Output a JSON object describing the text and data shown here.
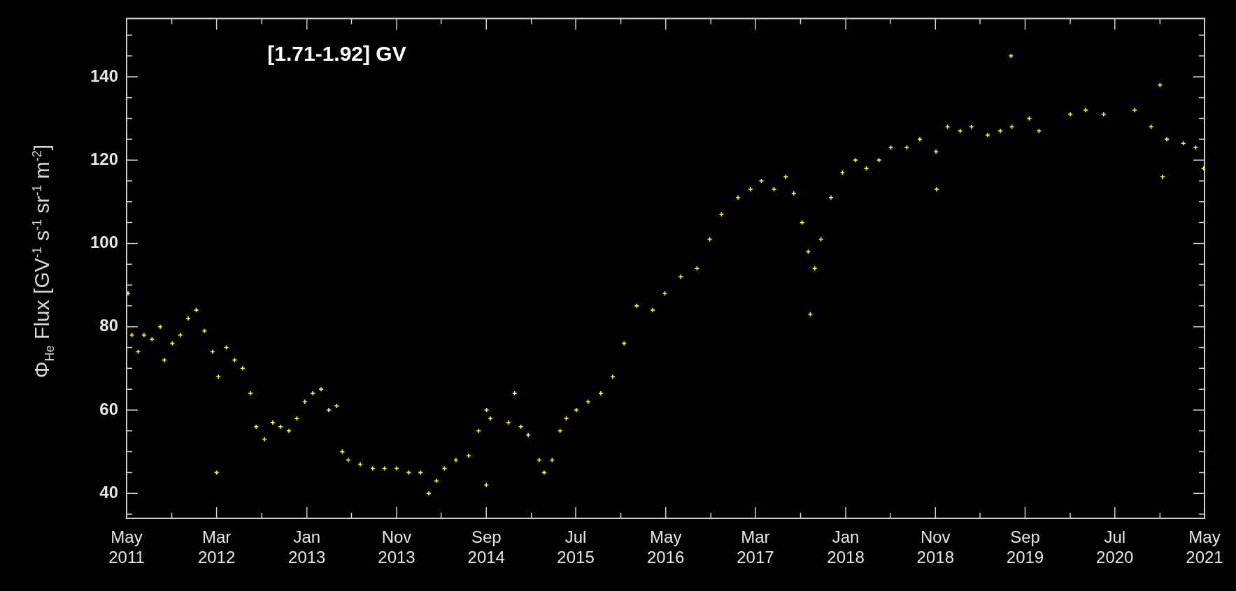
{
  "chart_data": {
    "type": "scatter",
    "title": "[1.71-1.92] GV",
    "ylabel": "Φ$_{He}$ Flux [GV$^{-1}$ s$^{-1}$ sr$^{-1}$ m$^{-2}$]",
    "marker": "cross",
    "grid": false,
    "legend": false,
    "xlim": [
      "2011-05-01",
      "2021-05-01"
    ],
    "xticks": [
      {
        "value": "2011-05",
        "label": "May 2011"
      },
      {
        "value": "2011-10",
        "label": null
      },
      {
        "value": "2012-03",
        "label": "Mar 2012"
      },
      {
        "value": "2012-08",
        "label": null
      },
      {
        "value": "2013-01",
        "label": "Jan 2013"
      },
      {
        "value": "2013-06",
        "label": null
      },
      {
        "value": "2013-11",
        "label": "Nov 2013"
      },
      {
        "value": "2014-04",
        "label": null
      },
      {
        "value": "2014-09",
        "label": "Sep 2014"
      },
      {
        "value": "2015-02",
        "label": null
      },
      {
        "value": "2015-07",
        "label": "Jul 2015"
      },
      {
        "value": "2015-12",
        "label": null
      },
      {
        "value": "2016-05",
        "label": "May 2016"
      },
      {
        "value": "2016-10",
        "label": null
      },
      {
        "value": "2017-03",
        "label": "Mar 2017"
      },
      {
        "value": "2017-08",
        "label": null
      },
      {
        "value": "2018-01",
        "label": "Jan 2018"
      },
      {
        "value": "2018-06",
        "label": null
      },
      {
        "value": "2018-11",
        "label": "Nov 2018"
      },
      {
        "value": "2019-04",
        "label": null
      },
      {
        "value": "2019-09",
        "label": "Sep 2019"
      },
      {
        "value": "2020-02",
        "label": null
      },
      {
        "value": "2020-07",
        "label": "Jul 2020"
      },
      {
        "value": "2020-12",
        "label": null
      },
      {
        "value": "2021-05",
        "label": "May 2021"
      }
    ],
    "ylim": [
      34,
      154
    ],
    "yticks": [
      {
        "value": 35,
        "label": null
      },
      40,
      {
        "value": 45,
        "label": null
      },
      {
        "value": 50,
        "label": null
      },
      {
        "value": 55,
        "label": null
      },
      60,
      {
        "value": 65,
        "label": null
      },
      {
        "value": 70,
        "label": null
      },
      {
        "value": 75,
        "label": null
      },
      80,
      {
        "value": 85,
        "label": null
      },
      {
        "value": 90,
        "label": null
      },
      {
        "value": 95,
        "label": null
      },
      100,
      {
        "value": 105,
        "label": null
      },
      {
        "value": 110,
        "label": null
      },
      {
        "value": 115,
        "label": null
      },
      120,
      {
        "value": 125,
        "label": null
      },
      {
        "value": 130,
        "label": null
      },
      {
        "value": 135,
        "label": null
      },
      140,
      {
        "value": 145,
        "label": null
      },
      {
        "value": 150,
        "label": null
      }
    ],
    "series": [
      {
        "color": "#ffff00",
        "x": [
          "2011-05-06",
          "2011-05-19",
          "2011-06-09",
          "2011-06-29",
          "2011-07-26",
          "2011-08-23",
          "2011-09-06",
          "2011-10-03",
          "2011-10-30",
          "2011-11-26",
          "2011-12-23",
          "2012-01-20",
          "2012-02-16",
          "2012-03-01",
          "2012-03-07",
          "2012-04-03",
          "2012-05-01",
          "2012-05-28",
          "2012-06-24",
          "2012-07-13",
          "2012-08-10",
          "2012-09-07",
          "2012-10-04",
          "2012-11-01",
          "2012-11-28",
          "2012-12-25",
          "2013-01-21",
          "2013-02-18",
          "2013-03-16",
          "2013-04-12",
          "2013-05-01",
          "2013-05-21",
          "2013-07-01",
          "2013-08-12",
          "2013-09-21",
          "2013-11-01",
          "2013-12-12",
          "2014-01-21",
          "2014-02-18",
          "2014-03-16",
          "2014-04-12",
          "2014-05-21",
          "2014-07-03",
          "2014-08-06",
          "2014-09-01",
          "2014-09-02",
          "2014-09-15",
          "2014-11-15",
          "2014-12-06",
          "2014-12-27",
          "2015-01-21",
          "2015-02-27",
          "2015-03-16",
          "2015-04-12",
          "2015-05-09",
          "2015-05-30",
          "2015-07-03",
          "2015-08-12",
          "2015-09-24",
          "2015-11-03",
          "2015-12-12",
          "2016-01-24",
          "2016-03-18",
          "2016-04-28",
          "2016-06-21",
          "2016-08-15",
          "2016-09-27",
          "2016-11-06",
          "2017-01-01",
          "2017-02-12",
          "2017-03-21",
          "2017-05-03",
          "2017-06-12",
          "2017-07-09",
          "2017-08-06",
          "2017-08-27",
          "2017-09-03",
          "2017-09-18",
          "2017-10-09",
          "2017-11-12",
          "2017-12-21",
          "2018-02-03",
          "2018-03-12",
          "2018-04-24",
          "2018-06-03",
          "2018-07-27",
          "2018-09-09",
          "2018-11-03",
          "2018-11-05",
          "2018-12-12",
          "2019-01-24",
          "2019-03-03",
          "2019-04-27",
          "2019-06-09",
          "2019-07-15",
          "2019-07-18",
          "2019-09-15",
          "2019-10-18",
          "2020-02-01",
          "2020-03-24",
          "2020-05-24",
          "2020-09-06",
          "2020-11-01",
          "2020-12-01",
          "2020-12-10",
          "2020-12-24",
          "2021-02-18",
          "2021-04-01",
          "2021-04-28"
        ],
        "values": [
          88,
          78,
          74,
          78,
          77,
          80,
          72,
          76,
          78,
          82,
          84,
          79,
          74,
          45,
          68,
          75,
          72,
          70,
          64,
          56,
          53,
          57,
          56,
          55,
          58,
          62,
          64,
          65,
          60,
          61,
          50,
          48,
          47,
          46,
          46,
          46,
          45,
          45,
          40,
          43,
          46,
          48,
          49,
          55,
          42,
          60,
          58,
          57,
          64,
          56,
          54,
          48,
          45,
          48,
          55,
          58,
          60,
          62,
          64,
          68,
          76,
          85,
          84,
          88,
          92,
          94,
          101,
          107,
          111,
          113,
          115,
          113,
          116,
          112,
          105,
          98,
          83,
          94,
          101,
          111,
          117,
          120,
          118,
          120,
          123,
          123,
          125,
          122,
          113,
          128,
          127,
          128,
          126,
          127,
          145,
          128,
          130,
          127,
          131,
          132,
          131,
          132,
          128,
          138,
          116,
          125,
          124,
          123,
          118
        ]
      }
    ]
  }
}
